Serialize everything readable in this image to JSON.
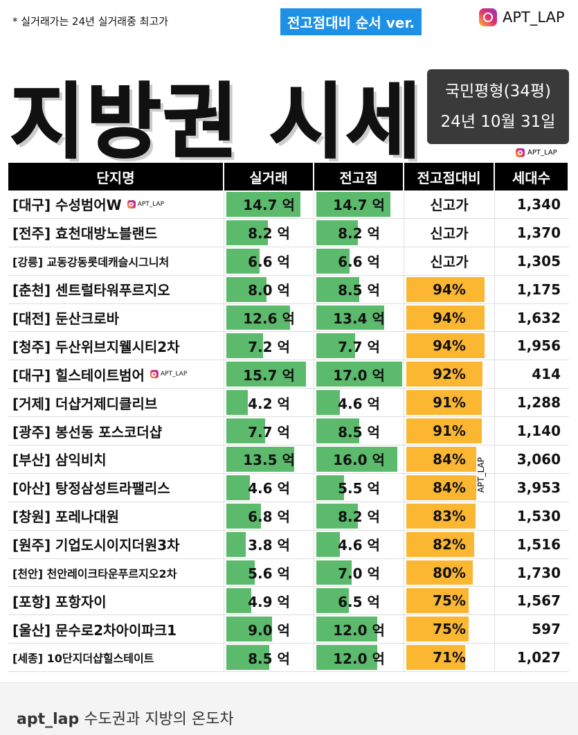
{
  "header": {
    "note": "* 실거래가는 24년 실거래중 최고가",
    "badge": "전고점대비 순서 ver.",
    "account": "APT_LAP",
    "title": "지방권 시세",
    "info_line1": "국민평형(34평)",
    "info_line2": "24년 10월 31일",
    "watermark": "APT_LAP"
  },
  "table": {
    "columns": [
      "단지명",
      "실거래",
      "전고점",
      "전고점대비",
      "세대수"
    ],
    "rows": [
      {
        "name": "[대구] 수성범어W",
        "watermark": "APT_LAP",
        "actual": {
          "value": 14.7,
          "label": "14.7 억"
        },
        "peak": {
          "value": 14.7,
          "label": "14.7 억"
        },
        "ratio": {
          "label": "신고가"
        },
        "households": "1,340"
      },
      {
        "name": "[전주] 효천대방노블랜드",
        "actual": {
          "value": 8.2,
          "label": "8.2 억"
        },
        "peak": {
          "value": 8.2,
          "label": "8.2 억"
        },
        "ratio": {
          "label": "신고가"
        },
        "households": "1,370"
      },
      {
        "name": "[강릉] 교동강동롯데캐슬시그니처",
        "actual": {
          "value": 6.6,
          "label": "6.6 억"
        },
        "peak": {
          "value": 6.6,
          "label": "6.6 억"
        },
        "ratio": {
          "label": "신고가"
        },
        "households": "1,305"
      },
      {
        "name": "[춘천] 센트럴타워푸르지오",
        "actual": {
          "value": 8.0,
          "label": "8.0 억"
        },
        "peak": {
          "value": 8.5,
          "label": "8.5 억"
        },
        "ratio": {
          "value": 94,
          "label": "94%"
        },
        "households": "1,175"
      },
      {
        "name": "[대전] 둔산크로바",
        "actual": {
          "value": 12.6,
          "label": "12.6 억"
        },
        "peak": {
          "value": 13.4,
          "label": "13.4 억"
        },
        "ratio": {
          "value": 94,
          "label": "94%"
        },
        "households": "1,632"
      },
      {
        "name": "[청주] 두산위브지웰시티2차",
        "actual": {
          "value": 7.2,
          "label": "7.2 억"
        },
        "peak": {
          "value": 7.7,
          "label": "7.7 억"
        },
        "ratio": {
          "value": 94,
          "label": "94%"
        },
        "households": "1,956"
      },
      {
        "name": "[대구] 힐스테이트범어",
        "watermark": "APT_LAP",
        "actual": {
          "value": 15.7,
          "label": "15.7 억"
        },
        "peak": {
          "value": 17.0,
          "label": "17.0 억"
        },
        "ratio": {
          "value": 92,
          "label": "92%"
        },
        "households": "414"
      },
      {
        "name": "[거제] 더샵거제디클리브",
        "actual": {
          "value": 4.2,
          "label": "4.2 억"
        },
        "peak": {
          "value": 4.6,
          "label": "4.6 억"
        },
        "ratio": {
          "value": 91,
          "label": "91%"
        },
        "households": "1,288"
      },
      {
        "name": "[광주] 봉선동 포스코더샵",
        "actual": {
          "value": 7.7,
          "label": "7.7 억"
        },
        "peak": {
          "value": 8.5,
          "label": "8.5 억"
        },
        "ratio": {
          "value": 91,
          "label": "91%"
        },
        "households": "1,140"
      },
      {
        "name": "[부산] 삼익비치",
        "actual": {
          "value": 13.5,
          "label": "13.5 억"
        },
        "peak": {
          "value": 16.0,
          "label": "16.0 억"
        },
        "ratio": {
          "value": 84,
          "label": "84%"
        },
        "households": "3,060"
      },
      {
        "name": "[아산] 탕정삼성트라팰리스",
        "actual": {
          "value": 4.6,
          "label": "4.6 억"
        },
        "peak": {
          "value": 5.5,
          "label": "5.5 억"
        },
        "ratio": {
          "value": 84,
          "label": "84%"
        },
        "households": "3,953"
      },
      {
        "name": "[창원] 포레나대원",
        "actual": {
          "value": 6.8,
          "label": "6.8 억"
        },
        "peak": {
          "value": 8.2,
          "label": "8.2 억"
        },
        "ratio": {
          "value": 83,
          "label": "83%"
        },
        "households": "1,530"
      },
      {
        "name": "[원주] 기업도시이지더원3차",
        "actual": {
          "value": 3.8,
          "label": "3.8 억"
        },
        "peak": {
          "value": 4.6,
          "label": "4.6 억"
        },
        "ratio": {
          "value": 82,
          "label": "82%"
        },
        "households": "1,516"
      },
      {
        "name": "[천안] 천안레이크타운푸르지오2차",
        "actual": {
          "value": 5.6,
          "label": "5.6 억"
        },
        "peak": {
          "value": 7.0,
          "label": "7.0 억"
        },
        "ratio": {
          "value": 80,
          "label": "80%"
        },
        "households": "1,730"
      },
      {
        "name": "[포항] 포항자이",
        "actual": {
          "value": 4.9,
          "label": "4.9 억"
        },
        "peak": {
          "value": 6.5,
          "label": "6.5 억"
        },
        "ratio": {
          "value": 75,
          "label": "75%"
        },
        "households": "1,567"
      },
      {
        "name": "[울산] 문수로2차아이파크1",
        "actual": {
          "value": 9.0,
          "label": "9.0 억"
        },
        "peak": {
          "value": 12.0,
          "label": "12.0 억"
        },
        "ratio": {
          "value": 75,
          "label": "75%"
        },
        "households": "597"
      },
      {
        "name": "[세종] 10단지더샵힐스테이트",
        "actual": {
          "value": 8.5,
          "label": "8.5 억"
        },
        "peak": {
          "value": 12.0,
          "label": "12.0 억"
        },
        "ratio": {
          "value": 71,
          "label": "71%"
        },
        "households": "1,027"
      }
    ],
    "side_watermark": "APT_LAP"
  },
  "caption": {
    "user": "apt_lap",
    "text": "수도권과 지방의 온도차"
  }
}
